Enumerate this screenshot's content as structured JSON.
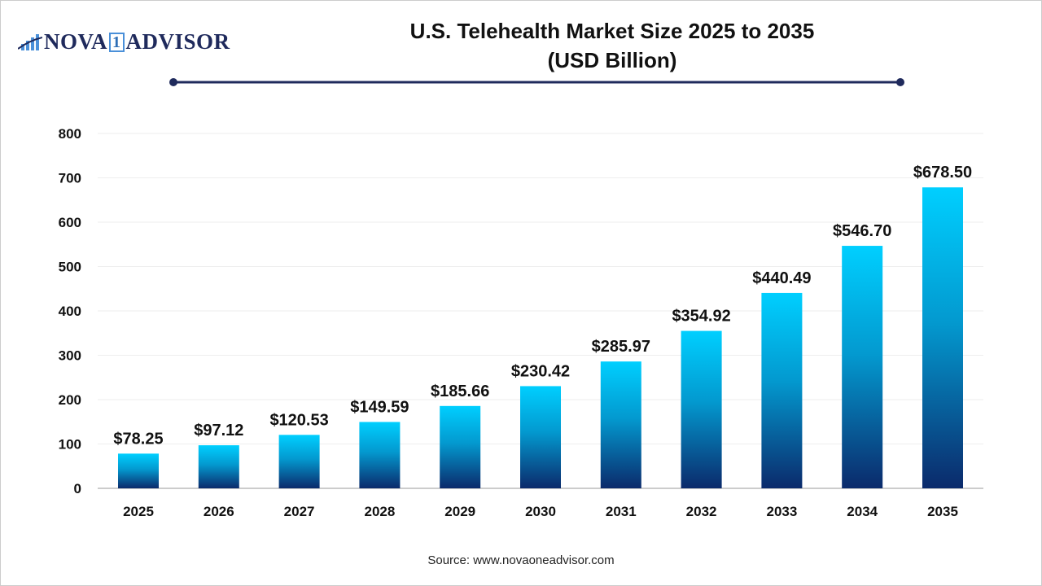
{
  "logo": {
    "text_left": "NOVA",
    "text_mid": "1",
    "text_right": "ADVISOR"
  },
  "chart_data": {
    "type": "bar",
    "title_line1": "U.S. Telehealth Market Size 2025 to 2035",
    "title_line2": "(USD Billion)",
    "categories": [
      "2025",
      "2026",
      "2027",
      "2028",
      "2029",
      "2030",
      "2031",
      "2032",
      "2033",
      "2034",
      "2035"
    ],
    "values": [
      78.25,
      97.12,
      120.53,
      149.59,
      185.66,
      230.42,
      285.97,
      354.92,
      440.49,
      546.7,
      678.5
    ],
    "data_labels": [
      "$78.25",
      "$97.12",
      "$120.53",
      "$149.59",
      "$185.66",
      "$230.42",
      "$285.97",
      "$354.92",
      "$440.49",
      "$546.70",
      "$678.50"
    ],
    "yticks": [
      0,
      100,
      200,
      300,
      400,
      500,
      600,
      700,
      800
    ],
    "ylim": [
      0,
      800
    ],
    "xlabel": "",
    "ylabel": "",
    "grid": true,
    "colors": {
      "bar_top": "#00cfff",
      "bar_bottom": "#0b2a6b",
      "title_rule": "#1f2a5c"
    }
  },
  "source": "Source: www.novaoneadvisor.com"
}
